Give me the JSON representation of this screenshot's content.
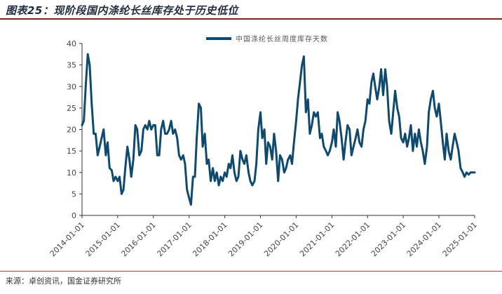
{
  "figure": {
    "title": "图表25：现阶段国内涤纶长丝库存处于历史低位",
    "source": "来源：卓创资讯，国金证券研究所"
  },
  "colors": {
    "series": "#0d4a6e",
    "rule": "#8a1f1f",
    "axis": "#333333"
  },
  "chart_data": {
    "type": "line",
    "title": "",
    "xlabel": "",
    "ylabel": "",
    "ylim": [
      0,
      40
    ],
    "yticks": [
      0,
      5,
      10,
      15,
      20,
      25,
      30,
      35,
      40
    ],
    "xlim": [
      "2014-01-01",
      "2025-01-01"
    ],
    "xticks": [
      "2014-01-01",
      "2015-01-01",
      "2016-01-01",
      "2017-01-01",
      "2018-01-01",
      "2019-01-01",
      "2020-01-01",
      "2021-01-01",
      "2022-01-01",
      "2023-01-01",
      "2024-01-01",
      "2025-01-01"
    ],
    "legend": "top-center",
    "grid": false,
    "series": [
      {
        "name": "中国涤纶长丝周度库存天数",
        "points": [
          [
            "2014-01-01",
            21
          ],
          [
            "2014-01-20",
            22
          ],
          [
            "2014-02-10",
            31
          ],
          [
            "2014-03-01",
            37.5
          ],
          [
            "2014-03-20",
            35
          ],
          [
            "2014-04-10",
            26
          ],
          [
            "2014-05-01",
            19
          ],
          [
            "2014-05-20",
            19
          ],
          [
            "2014-06-10",
            14
          ],
          [
            "2014-07-01",
            16
          ],
          [
            "2014-07-20",
            18
          ],
          [
            "2014-08-10",
            20
          ],
          [
            "2014-09-01",
            14
          ],
          [
            "2014-09-20",
            17
          ],
          [
            "2014-10-10",
            11
          ],
          [
            "2014-11-01",
            10.5
          ],
          [
            "2014-11-20",
            8
          ],
          [
            "2014-12-10",
            9
          ],
          [
            "2015-01-01",
            8
          ],
          [
            "2015-01-20",
            9
          ],
          [
            "2015-02-10",
            5
          ],
          [
            "2015-03-01",
            6
          ],
          [
            "2015-03-20",
            11
          ],
          [
            "2015-04-10",
            16
          ],
          [
            "2015-05-01",
            13
          ],
          [
            "2015-05-20",
            9
          ],
          [
            "2015-06-10",
            13
          ],
          [
            "2015-07-01",
            21
          ],
          [
            "2015-07-20",
            20
          ],
          [
            "2015-08-10",
            14
          ],
          [
            "2015-09-01",
            15
          ],
          [
            "2015-09-20",
            20
          ],
          [
            "2015-10-10",
            21
          ],
          [
            "2015-11-01",
            20
          ],
          [
            "2015-11-20",
            22
          ],
          [
            "2015-12-10",
            20
          ],
          [
            "2016-01-01",
            21
          ],
          [
            "2016-01-20",
            21
          ],
          [
            "2016-02-10",
            14
          ],
          [
            "2016-03-01",
            14
          ],
          [
            "2016-03-20",
            20
          ],
          [
            "2016-04-10",
            22
          ],
          [
            "2016-05-01",
            19
          ],
          [
            "2016-05-20",
            19
          ],
          [
            "2016-06-10",
            20
          ],
          [
            "2016-07-01",
            22
          ],
          [
            "2016-07-20",
            19
          ],
          [
            "2016-08-10",
            20
          ],
          [
            "2016-09-01",
            18
          ],
          [
            "2016-09-20",
            14
          ],
          [
            "2016-10-10",
            13
          ],
          [
            "2016-11-01",
            14
          ],
          [
            "2016-11-20",
            12
          ],
          [
            "2016-12-10",
            6
          ],
          [
            "2017-01-01",
            4
          ],
          [
            "2017-01-20",
            2.5
          ],
          [
            "2017-02-10",
            9
          ],
          [
            "2017-03-01",
            9
          ],
          [
            "2017-03-20",
            18
          ],
          [
            "2017-04-10",
            26
          ],
          [
            "2017-05-01",
            25
          ],
          [
            "2017-05-20",
            16
          ],
          [
            "2017-06-10",
            19
          ],
          [
            "2017-07-01",
            12
          ],
          [
            "2017-07-20",
            13
          ],
          [
            "2017-08-10",
            8
          ],
          [
            "2017-09-01",
            11
          ],
          [
            "2017-09-20",
            8
          ],
          [
            "2017-10-10",
            10
          ],
          [
            "2017-11-01",
            7
          ],
          [
            "2017-11-20",
            9
          ],
          [
            "2017-12-10",
            8
          ],
          [
            "2018-01-01",
            10
          ],
          [
            "2018-01-20",
            9
          ],
          [
            "2018-02-10",
            12
          ],
          [
            "2018-03-01",
            11
          ],
          [
            "2018-03-20",
            14
          ],
          [
            "2018-04-10",
            10
          ],
          [
            "2018-05-01",
            8
          ],
          [
            "2018-05-20",
            9
          ],
          [
            "2018-06-10",
            15
          ],
          [
            "2018-07-01",
            13
          ],
          [
            "2018-07-20",
            12
          ],
          [
            "2018-08-10",
            14
          ],
          [
            "2018-09-01",
            10
          ],
          [
            "2018-09-20",
            8
          ],
          [
            "2018-10-10",
            7
          ],
          [
            "2018-11-01",
            8
          ],
          [
            "2018-11-20",
            12
          ],
          [
            "2018-12-10",
            20
          ],
          [
            "2019-01-01",
            24
          ],
          [
            "2019-01-20",
            18
          ],
          [
            "2019-02-10",
            20
          ],
          [
            "2019-03-01",
            12
          ],
          [
            "2019-03-20",
            17
          ],
          [
            "2019-04-10",
            16
          ],
          [
            "2019-05-01",
            13
          ],
          [
            "2019-05-20",
            19
          ],
          [
            "2019-06-10",
            15
          ],
          [
            "2019-07-01",
            8
          ],
          [
            "2019-07-20",
            14
          ],
          [
            "2019-08-10",
            13
          ],
          [
            "2019-09-01",
            10
          ],
          [
            "2019-09-20",
            11
          ],
          [
            "2019-10-10",
            13
          ],
          [
            "2019-11-01",
            14
          ],
          [
            "2019-11-20",
            12
          ],
          [
            "2019-12-10",
            17
          ],
          [
            "2020-01-01",
            22
          ],
          [
            "2020-01-20",
            27
          ],
          [
            "2020-02-10",
            31
          ],
          [
            "2020-03-01",
            35
          ],
          [
            "2020-03-20",
            37
          ],
          [
            "2020-04-10",
            24
          ],
          [
            "2020-05-01",
            27
          ],
          [
            "2020-05-20",
            19
          ],
          [
            "2020-06-10",
            21
          ],
          [
            "2020-07-01",
            24
          ],
          [
            "2020-07-20",
            23
          ],
          [
            "2020-08-10",
            24
          ],
          [
            "2020-09-01",
            18
          ],
          [
            "2020-09-20",
            19
          ],
          [
            "2020-10-10",
            16
          ],
          [
            "2020-11-01",
            15
          ],
          [
            "2020-11-20",
            14
          ],
          [
            "2020-12-10",
            15
          ],
          [
            "2021-01-01",
            17
          ],
          [
            "2021-01-20",
            20
          ],
          [
            "2021-02-10",
            16
          ],
          [
            "2021-03-01",
            24
          ],
          [
            "2021-03-20",
            22
          ],
          [
            "2021-04-10",
            18
          ],
          [
            "2021-05-01",
            13
          ],
          [
            "2021-05-20",
            17
          ],
          [
            "2021-06-10",
            21
          ],
          [
            "2021-07-01",
            20
          ],
          [
            "2021-07-20",
            14
          ],
          [
            "2021-08-10",
            16
          ],
          [
            "2021-09-01",
            18
          ],
          [
            "2021-09-20",
            20
          ],
          [
            "2021-10-10",
            17
          ],
          [
            "2021-11-01",
            16
          ],
          [
            "2021-11-20",
            20
          ],
          [
            "2021-12-10",
            22
          ],
          [
            "2022-01-01",
            27
          ],
          [
            "2022-01-20",
            26
          ],
          [
            "2022-02-10",
            31
          ],
          [
            "2022-03-01",
            33
          ],
          [
            "2022-03-20",
            30
          ],
          [
            "2022-04-10",
            27
          ],
          [
            "2022-05-01",
            30
          ],
          [
            "2022-05-20",
            34
          ],
          [
            "2022-06-10",
            28
          ],
          [
            "2022-07-01",
            34
          ],
          [
            "2022-07-20",
            30
          ],
          [
            "2022-08-10",
            22
          ],
          [
            "2022-09-01",
            19
          ],
          [
            "2022-09-20",
            24
          ],
          [
            "2022-10-10",
            29
          ],
          [
            "2022-11-01",
            25
          ],
          [
            "2022-11-20",
            23
          ],
          [
            "2022-12-10",
            18
          ],
          [
            "2023-01-01",
            17
          ],
          [
            "2023-01-20",
            19
          ],
          [
            "2023-02-10",
            16
          ],
          [
            "2023-03-01",
            18
          ],
          [
            "2023-03-20",
            21
          ],
          [
            "2023-04-10",
            15
          ],
          [
            "2023-05-01",
            19
          ],
          [
            "2023-05-20",
            16
          ],
          [
            "2023-06-10",
            20
          ],
          [
            "2023-07-01",
            17
          ],
          [
            "2023-07-20",
            15
          ],
          [
            "2023-08-10",
            12
          ],
          [
            "2023-09-01",
            16
          ],
          [
            "2023-09-20",
            24
          ],
          [
            "2023-10-10",
            27
          ],
          [
            "2023-11-01",
            29
          ],
          [
            "2023-11-20",
            25
          ],
          [
            "2023-12-10",
            23
          ],
          [
            "2024-01-01",
            26
          ],
          [
            "2024-01-20",
            22
          ],
          [
            "2024-02-10",
            17
          ],
          [
            "2024-03-01",
            13
          ],
          [
            "2024-03-20",
            19
          ],
          [
            "2024-04-10",
            15
          ],
          [
            "2024-05-01",
            13
          ],
          [
            "2024-05-20",
            16
          ],
          [
            "2024-06-10",
            19
          ],
          [
            "2024-07-01",
            17
          ],
          [
            "2024-07-20",
            15
          ],
          [
            "2024-08-10",
            11
          ],
          [
            "2024-09-01",
            10
          ],
          [
            "2024-09-20",
            9
          ],
          [
            "2024-10-10",
            10
          ],
          [
            "2024-11-01",
            9.5
          ],
          [
            "2024-11-20",
            10
          ],
          [
            "2024-12-10",
            10
          ],
          [
            "2025-01-01",
            10
          ]
        ]
      }
    ]
  }
}
